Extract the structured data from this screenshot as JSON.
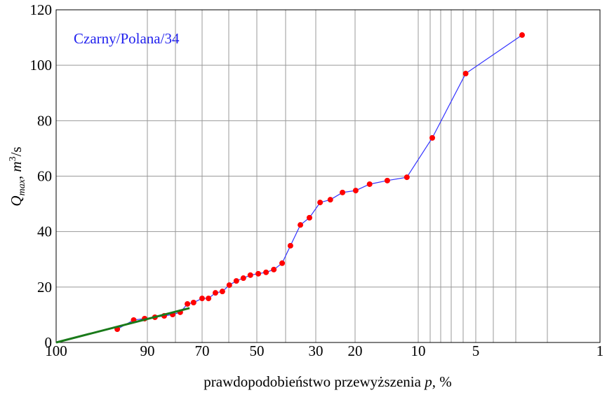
{
  "chart_data": {
    "type": "line",
    "annotation": "Czarny/Polana/34",
    "y_label": {
      "q": "Q",
      "sub": "max",
      "sep": ", ",
      "m": "m",
      "sup": "3",
      "unit": "/s"
    },
    "x_label": {
      "text": "prawdopodobieństwo przewyższenia ",
      "var": "p",
      "unit": ", %"
    },
    "xlim": [
      100,
      1
    ],
    "xticks": [
      100,
      90,
      70,
      50,
      30,
      20,
      10,
      5,
      1
    ],
    "xminor": [
      80,
      60,
      40,
      9,
      8,
      7,
      6,
      4,
      3,
      2
    ],
    "ylim": [
      0,
      120
    ],
    "yticks": [
      0,
      20,
      40,
      60,
      80,
      100,
      120
    ],
    "grid": true,
    "series": [
      {
        "color": "#3333ff",
        "marker_color": "#ff0000",
        "x": [
          93.3,
          91.5,
          90.3,
          87.3,
          84,
          81,
          78.2,
          75.5,
          73.2,
          70,
          67.6,
          65,
          62.4,
          59.8,
          57.3,
          54.8,
          52.3,
          49.5,
          46.8,
          44.1,
          41.2,
          38.4,
          35.1,
          32.1,
          28.9,
          26.3,
          23.2,
          19.9,
          17.7,
          14.9,
          11.8,
          8.8,
          5.8,
          2.8
        ],
        "values": [
          4.8,
          8.1,
          8.6,
          9.1,
          9.6,
          10.1,
          10.9,
          13.9,
          14.4,
          15.9,
          15.9,
          17.9,
          18.4,
          20.7,
          22.2,
          23.2,
          24.3,
          24.8,
          25.3,
          26.3,
          28.6,
          34.9,
          42.4,
          45,
          50.5,
          51.5,
          54.1,
          54.8,
          57.1,
          58.4,
          59.6,
          73.8,
          97,
          110.9
        ]
      },
      {
        "color": "#1a7a1a",
        "x": [
          100,
          74.7
        ],
        "values": [
          0,
          12.4
        ]
      }
    ]
  }
}
